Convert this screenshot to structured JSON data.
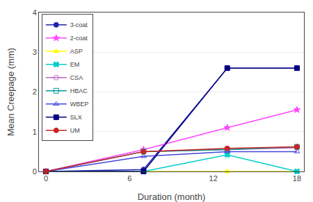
{
  "chart_data": {
    "type": "line",
    "xlabel": "Duration (month)",
    "ylabel": "Mean Creepage (mm)",
    "xlim": [
      -0.5,
      18.5
    ],
    "ylim": [
      0,
      4
    ],
    "xticks": [
      0,
      6,
      12,
      18
    ],
    "yticks": [
      0,
      1,
      2,
      3,
      4
    ],
    "grid": "y",
    "legend": "upper left",
    "series": [
      {
        "name": "3-coat",
        "color": "#2222AA",
        "marker": "circle",
        "x": [
          0,
          7,
          13,
          18
        ],
        "values": [
          0.0,
          0.05,
          2.6,
          2.6
        ]
      },
      {
        "name": "2-coat",
        "color": "#FF44FF",
        "marker": "star",
        "x": [
          0,
          7,
          13,
          18
        ],
        "values": [
          0.0,
          0.55,
          1.1,
          1.55
        ]
      },
      {
        "name": "ASP",
        "color": "#FFFF00",
        "marker": "triangle-up",
        "x": [
          0,
          7,
          13,
          18
        ],
        "values": [
          0.0,
          0.0,
          0.0,
          0.0
        ]
      },
      {
        "name": "EM",
        "color": "#00CCCC",
        "marker": "x",
        "x": [
          0,
          7,
          13,
          18
        ],
        "values": [
          0.0,
          0.0,
          0.42,
          0.0
        ]
      },
      {
        "name": "CSA",
        "color": "#BB66BB",
        "marker": "circle-open",
        "x": [
          0,
          7,
          13,
          18
        ],
        "values": [
          0.0,
          0.5,
          0.55,
          0.6
        ]
      },
      {
        "name": "HBAC",
        "color": "#009999",
        "marker": "square-open",
        "x": [
          0,
          7,
          13,
          18
        ],
        "values": [
          0.0,
          0.5,
          0.55,
          0.62
        ]
      },
      {
        "name": "WBEP",
        "color": "#4444DD",
        "marker": "triangle-up-open",
        "x": [
          0,
          7,
          13,
          18
        ],
        "values": [
          0.0,
          0.38,
          0.5,
          0.5
        ]
      },
      {
        "name": "SLX",
        "color": "#000080",
        "marker": "square",
        "x": [
          0,
          7,
          13,
          18
        ],
        "values": [
          0.0,
          0.0,
          2.6,
          2.6
        ]
      },
      {
        "name": "UM",
        "color": "#CC2222",
        "marker": "circle",
        "x": [
          0,
          7,
          13,
          18
        ],
        "values": [
          0.0,
          0.5,
          0.58,
          0.62
        ]
      }
    ]
  }
}
